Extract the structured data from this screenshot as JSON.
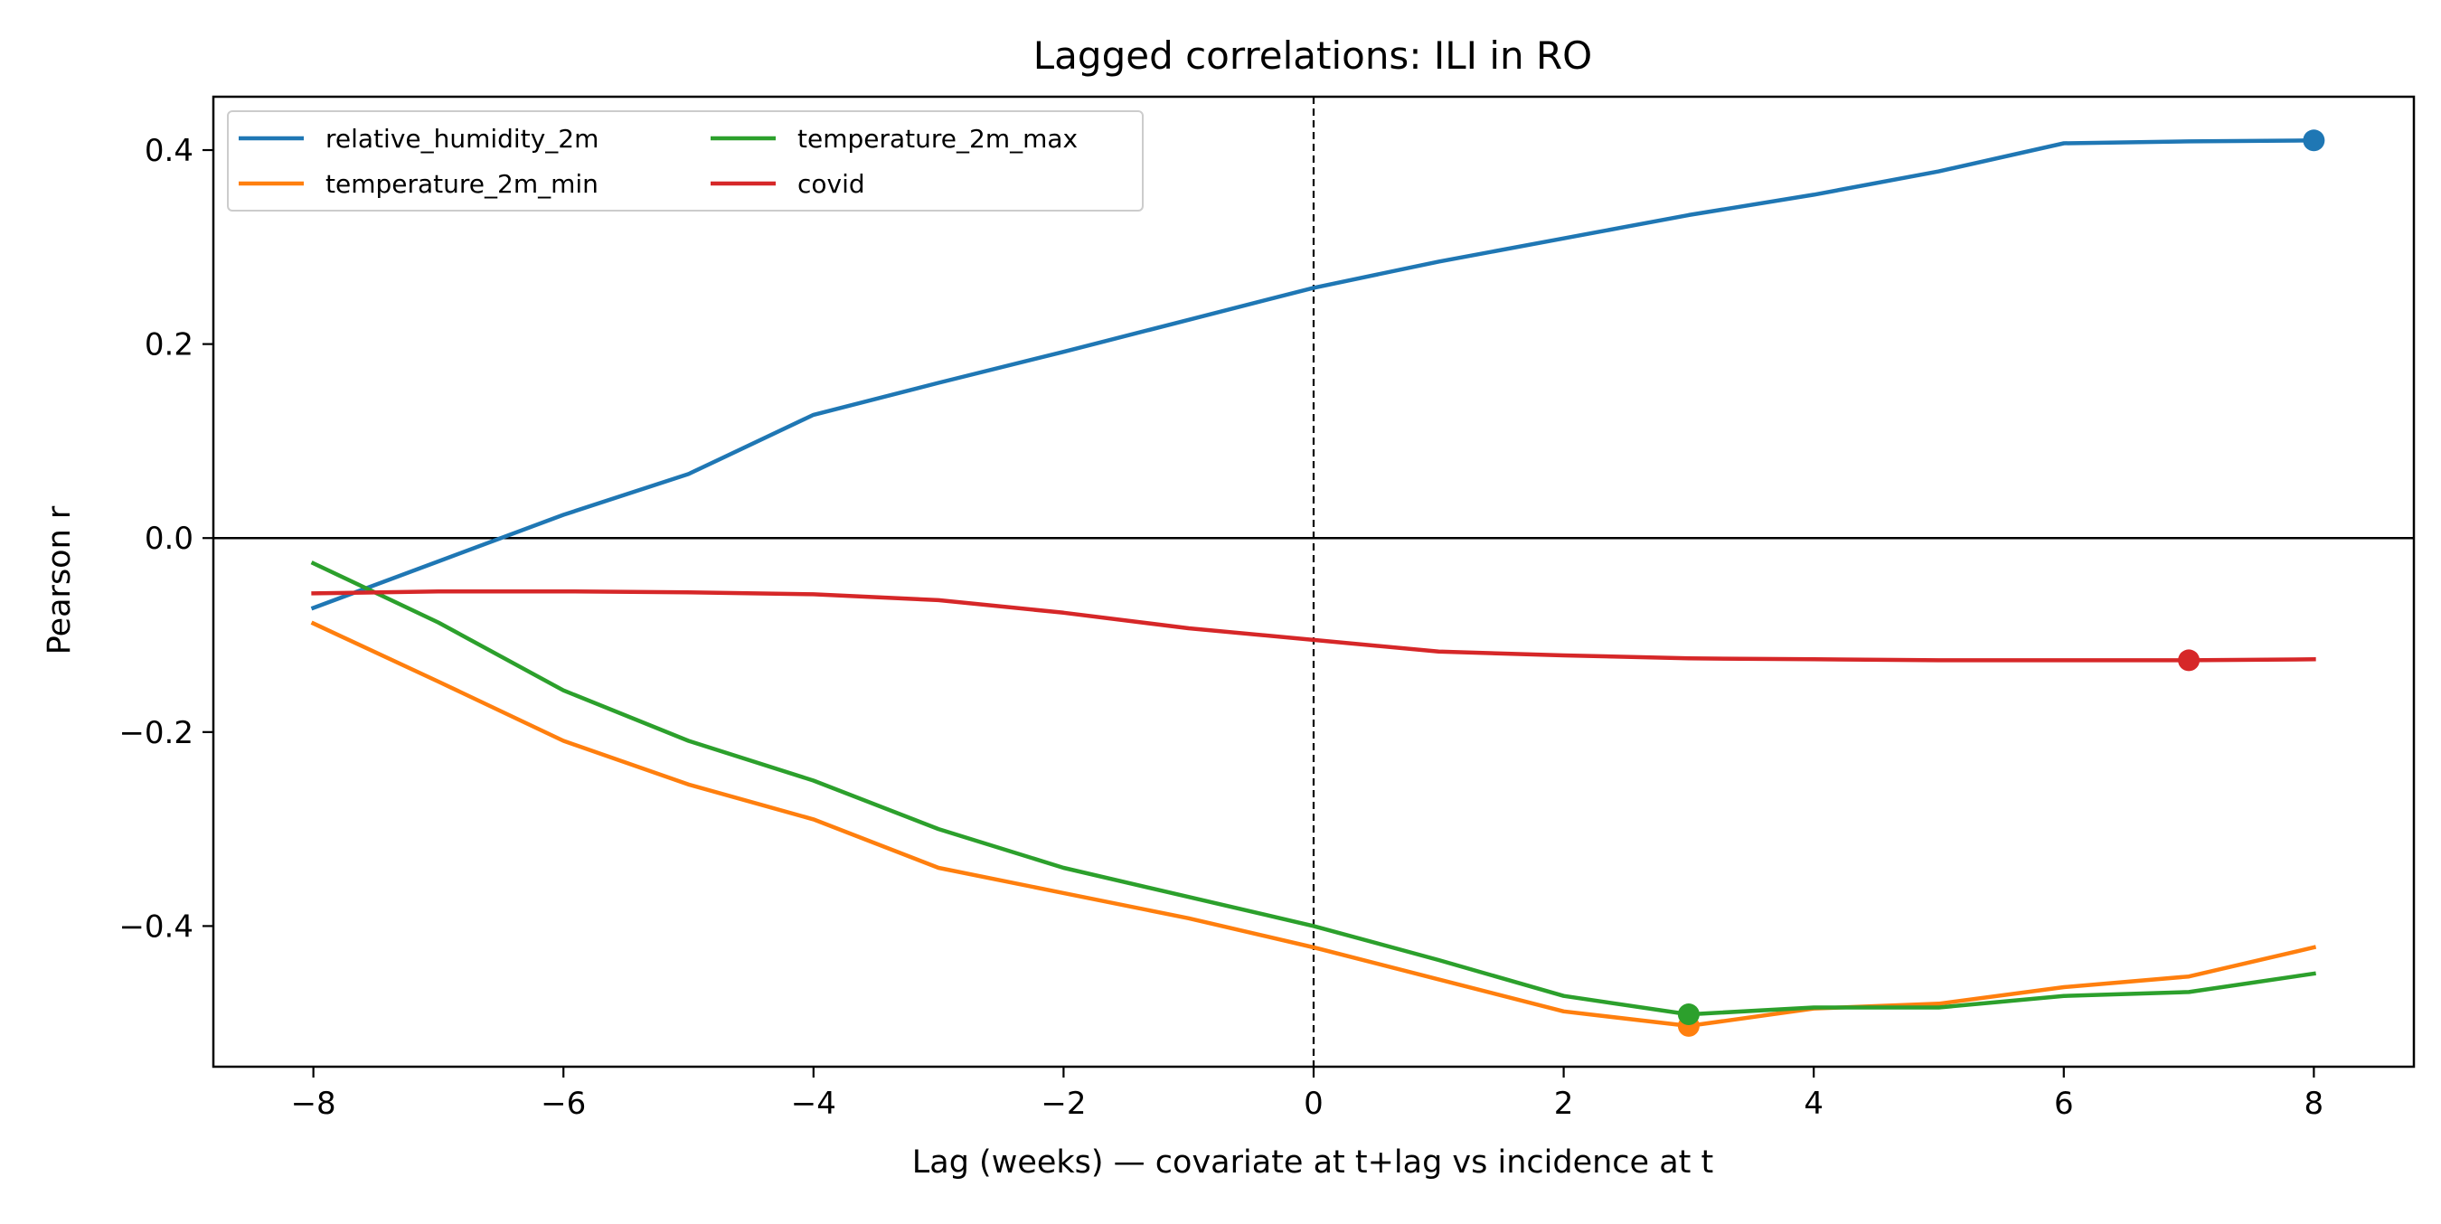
{
  "chart_data": {
    "type": "line",
    "title": "Lagged correlations: ILI in RO",
    "xlabel": "Lag (weeks) — covariate at t+lag vs incidence at t",
    "ylabel": "Pearson r",
    "xlim": [
      -8.8,
      8.8
    ],
    "ylim": [
      -0.545,
      0.455
    ],
    "x_ticks": [
      -8,
      -6,
      -4,
      -2,
      0,
      2,
      4,
      6,
      8
    ],
    "x_tick_labels": [
      "−8",
      "−6",
      "−4",
      "−2",
      "0",
      "2",
      "4",
      "6",
      "8"
    ],
    "y_ticks": [
      -0.4,
      -0.2,
      0.0,
      0.2,
      0.4
    ],
    "y_tick_labels": [
      "−0.4",
      "−0.2",
      "0.0",
      "0.2",
      "0.4"
    ],
    "reference_lines": {
      "horizontal_y": 0.0,
      "vertical_dashed_x": 0
    },
    "grid": false,
    "legend_placement": "top-left",
    "legend_columns": 2,
    "x": [
      -8,
      -7,
      -6,
      -5,
      -4,
      -3,
      -2,
      -1,
      0,
      1,
      2,
      3,
      4,
      5,
      6,
      7,
      8
    ],
    "series": [
      {
        "name": "relative_humidity_2m",
        "color": "#1f77b4",
        "values": [
          -0.072,
          -0.024,
          0.024,
          0.066,
          0.127,
          0.16,
          0.192,
          0.225,
          0.258,
          0.285,
          0.309,
          0.333,
          0.354,
          0.378,
          0.407,
          0.409,
          0.41
        ],
        "marker": {
          "x": 8,
          "y": 0.41
        }
      },
      {
        "name": "temperature_2m_min",
        "color": "#ff7f0e",
        "values": [
          -0.088,
          -0.148,
          -0.209,
          -0.254,
          -0.29,
          -0.34,
          -0.366,
          -0.392,
          -0.422,
          -0.455,
          -0.488,
          -0.503,
          -0.485,
          -0.48,
          -0.463,
          -0.452,
          -0.422
        ],
        "marker": {
          "x": 3,
          "y": -0.503
        }
      },
      {
        "name": "temperature_2m_max",
        "color": "#2ca02c",
        "values": [
          -0.026,
          -0.087,
          -0.157,
          -0.209,
          -0.25,
          -0.3,
          -0.34,
          -0.37,
          -0.4,
          -0.435,
          -0.472,
          -0.491,
          -0.484,
          -0.484,
          -0.472,
          -0.468,
          -0.449
        ],
        "marker": {
          "x": 3,
          "y": -0.491
        }
      },
      {
        "name": "covid",
        "color": "#d62728",
        "values": [
          -0.057,
          -0.055,
          -0.055,
          -0.056,
          -0.058,
          -0.064,
          -0.077,
          -0.093,
          -0.105,
          -0.117,
          -0.121,
          -0.124,
          -0.125,
          -0.126,
          -0.126,
          -0.126,
          -0.125
        ],
        "marker": {
          "x": 7,
          "y": -0.126
        }
      }
    ]
  }
}
